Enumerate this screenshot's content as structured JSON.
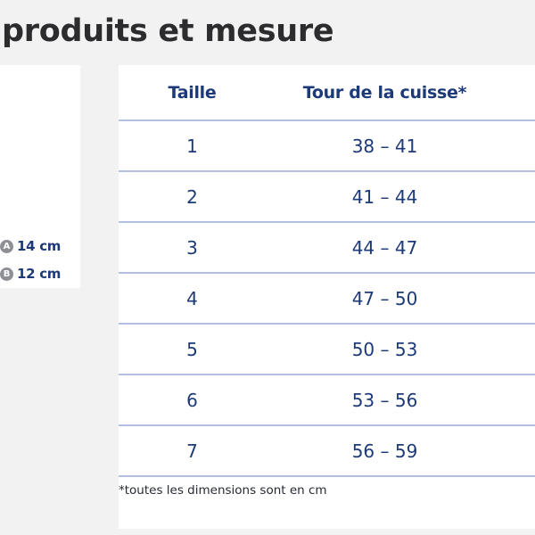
{
  "title": "produits et mesure",
  "dimensions": [
    {
      "badge": "A",
      "value": "14 cm"
    },
    {
      "badge": "B",
      "value": "12 cm"
    }
  ],
  "table": {
    "headers": {
      "size": "Taille",
      "thigh": "Tour de la cuisse*"
    },
    "rows": [
      {
        "size": "1",
        "thigh": "38 – 41"
      },
      {
        "size": "2",
        "thigh": "41 – 44"
      },
      {
        "size": "3",
        "thigh": "44 – 47"
      },
      {
        "size": "4",
        "thigh": "47 – 50"
      },
      {
        "size": "5",
        "thigh": "50 – 53"
      },
      {
        "size": "6",
        "thigh": "53 – 56"
      },
      {
        "size": "7",
        "thigh": "56 – 59"
      }
    ],
    "footnote": "*toutes les dimensions sont en cm"
  },
  "colors": {
    "background": "#f2f2f3",
    "panel": "#ffffff",
    "title": "#2c2c2e",
    "table_text": "#1d3a78",
    "rule": "#b3c0e0",
    "badge": "#8f9096"
  }
}
